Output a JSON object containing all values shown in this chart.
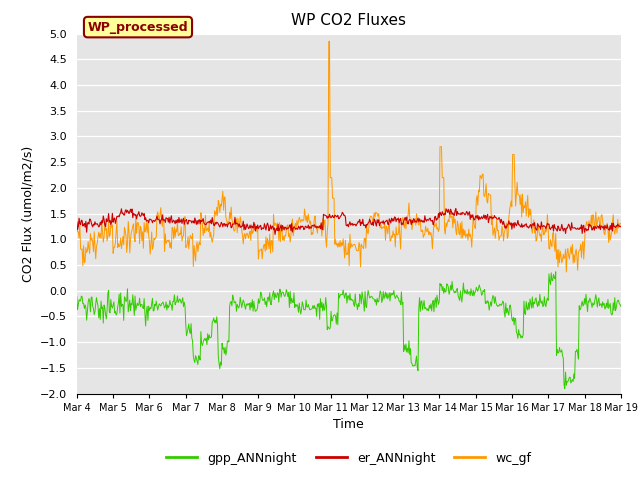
{
  "title": "WP CO2 Fluxes",
  "xlabel": "Time",
  "ylabel_plain": "CO2 Flux (umol/m2/s)",
  "ylim": [
    -2.0,
    5.0
  ],
  "yticks": [
    -2.0,
    -1.5,
    -1.0,
    -0.5,
    0.0,
    0.5,
    1.0,
    1.5,
    2.0,
    2.5,
    3.0,
    3.5,
    4.0,
    4.5,
    5.0
  ],
  "xtick_labels": [
    "Mar 4",
    "Mar 5",
    "Mar 6",
    "Mar 7",
    "Mar 8",
    "Mar 9",
    "Mar 10",
    "Mar 11",
    "Mar 12",
    "Mar 13",
    "Mar 14",
    "Mar 15",
    "Mar 16",
    "Mar 17",
    "Mar 18",
    "Mar 19"
  ],
  "color_gpp": "#33cc00",
  "color_er": "#cc0000",
  "color_wc": "#ff9900",
  "annotation_text": "WP_processed",
  "annotation_color": "#8b0000",
  "annotation_bg": "#ffff99",
  "bg_color": "#e5e5e5",
  "legend_labels": [
    "gpp_ANNnight",
    "er_ANNnight",
    "wc_gf"
  ],
  "n_days": 15,
  "n_per_day": 48
}
